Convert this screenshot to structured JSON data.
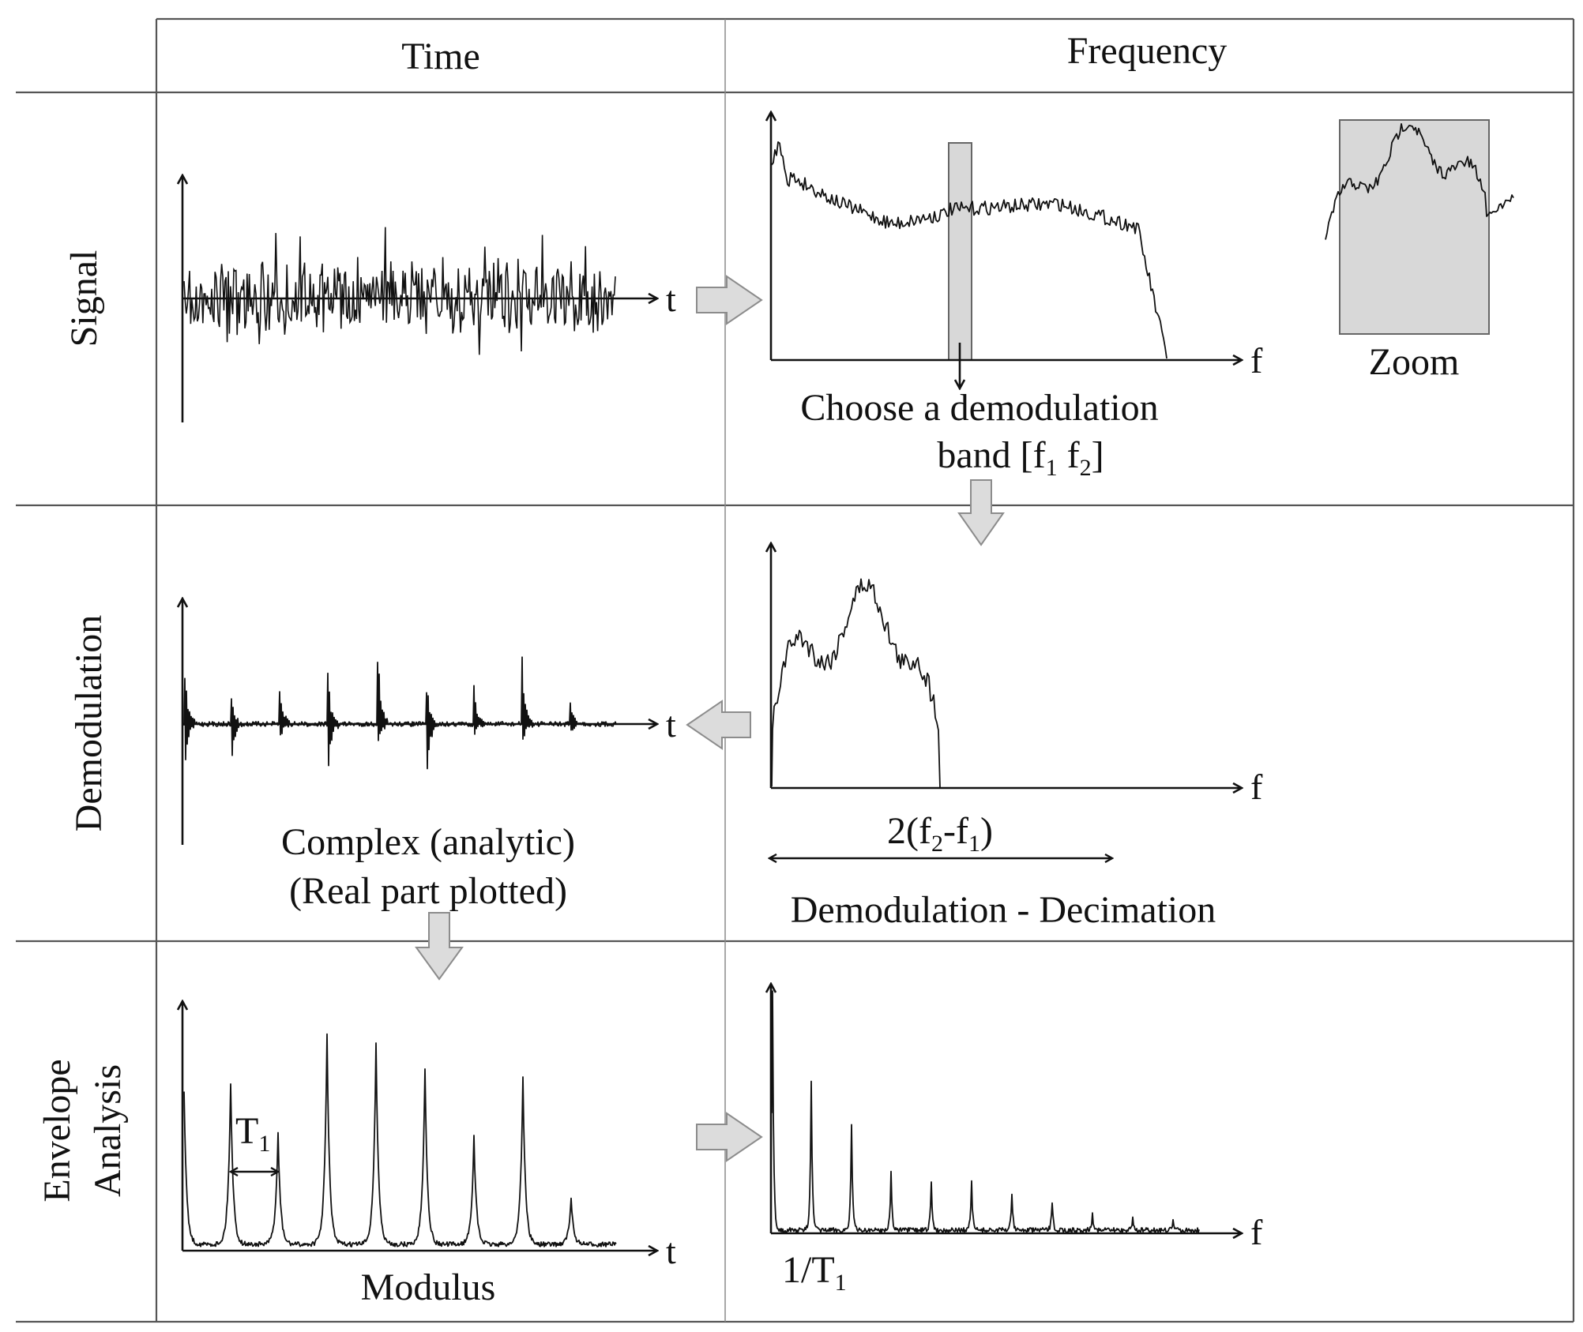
{
  "columns": {
    "time": "Time",
    "frequency": "Frequency"
  },
  "rows": {
    "signal": "Signal",
    "demodulation": "Demodulation",
    "envelope_line1": "Envelope",
    "envelope_line2": "Analysis"
  },
  "axis_labels": {
    "time": "t",
    "frequency": "f"
  },
  "signal_row": {
    "zoom_label": "Zoom",
    "band_caption_line1": "Choose a demodulation",
    "band_caption_line2_prefix": "band [f",
    "band_sub1": "1",
    "band_mid": " f",
    "band_sub2": "2",
    "band_suffix": "]"
  },
  "demodulation_row": {
    "time_caption_line1": "Complex (analytic)",
    "time_caption_line2": "(Real part plotted)",
    "bandwidth_prefix": "2(f",
    "bandwidth_sub2": "2",
    "bandwidth_mid": "-f",
    "bandwidth_sub1": "1",
    "bandwidth_suffix": ")",
    "freq_caption": "Demodulation - Decimation"
  },
  "envelope_row": {
    "period_label": "T",
    "period_sub": "1",
    "time_caption": "Modulus",
    "freq_label_prefix": "1/T",
    "freq_label_sub": "1"
  },
  "colors": {
    "line": "#111111",
    "grid": "#555555",
    "highlight_fill": "#d8d8d8",
    "flow_arrow_fill": "#dcdcdc"
  }
}
